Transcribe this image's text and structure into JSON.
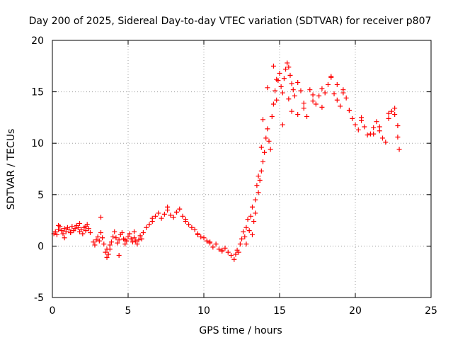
{
  "chart_data": {
    "type": "scatter",
    "title": "Day 200 of 2025, Sidereal Day-to-day VTEC variation (SDTVAR) for receiver p807",
    "xlabel": "GPS time / hours",
    "ylabel": "SDTVAR / TECUs",
    "xlim": [
      0,
      25
    ],
    "ylim": [
      -5,
      20
    ],
    "xticks": [
      0,
      5,
      10,
      15,
      20,
      25
    ],
    "yticks": [
      -5,
      0,
      5,
      10,
      15,
      20
    ],
    "xtick_labels": [
      "0",
      "5",
      "10",
      "15",
      "20",
      "25"
    ],
    "ytick_labels": [
      "-5",
      "0",
      "5",
      "10",
      "15",
      "20"
    ],
    "grid": true,
    "marker": "plus",
    "colors": {
      "series": "#ff0000",
      "grid": "#a0a0a0",
      "axis": "#000000"
    },
    "series": [
      {
        "name": "SDTVAR",
        "x": [
          0.1,
          0.2,
          0.3,
          0.4,
          0.5,
          0.6,
          0.7,
          0.8,
          0.9,
          1.0,
          1.1,
          1.2,
          1.3,
          1.4,
          1.5,
          1.6,
          1.7,
          1.8,
          1.9,
          2.0,
          2.1,
          2.2,
          2.3,
          2.4,
          2.5,
          2.7,
          2.8,
          2.9,
          3.0,
          3.1,
          3.2,
          3.3,
          3.4,
          3.5,
          3.6,
          3.7,
          3.8,
          3.9,
          4.0,
          4.1,
          4.2,
          4.3,
          4.4,
          4.5,
          4.6,
          4.7,
          4.8,
          4.9,
          5.0,
          5.1,
          5.2,
          5.3,
          5.4,
          5.5,
          5.6,
          5.7,
          5.8,
          5.9,
          6.0,
          6.2,
          6.4,
          6.6,
          6.8,
          7.0,
          7.2,
          7.4,
          7.6,
          7.8,
          8.0,
          8.2,
          8.4,
          8.6,
          8.8,
          9.0,
          9.2,
          9.4,
          9.6,
          9.8,
          10.0,
          10.2,
          10.4,
          10.6,
          10.8,
          11.0,
          11.2,
          11.4,
          11.6,
          11.8,
          12.0,
          12.1,
          12.2,
          12.3,
          12.4,
          12.5,
          12.6,
          12.7,
          12.8,
          12.9,
          13.0,
          13.1,
          13.2,
          13.3,
          13.4,
          13.5,
          13.6,
          13.7,
          13.8,
          13.9,
          14.0,
          14.1,
          14.2,
          14.3,
          14.4,
          14.5,
          14.6,
          14.7,
          14.8,
          14.9,
          15.0,
          15.1,
          15.2,
          15.3,
          15.4,
          15.5,
          15.6,
          15.7,
          15.8,
          15.9,
          16.0,
          16.2,
          16.4,
          16.6,
          16.8,
          17.0,
          17.2,
          17.4,
          17.6,
          17.8,
          18.0,
          18.2,
          18.4,
          18.6,
          18.8,
          19.0,
          19.2,
          19.4,
          19.6,
          19.8,
          20.0,
          20.2,
          20.4,
          20.6,
          20.8,
          21.0,
          21.2,
          21.4,
          21.6,
          21.8,
          22.0,
          22.2,
          22.4,
          22.6,
          22.8,
          22.9,
          0.4,
          0.8,
          1.2,
          1.8,
          2.2,
          3.2,
          3.6,
          3.8,
          4.4,
          4.8,
          5.4,
          6.6,
          7.6,
          8.2,
          8.8,
          9.6,
          10.4,
          11.2,
          12.8,
          13.2,
          13.4,
          13.6,
          13.8,
          13.9,
          14.2,
          14.6,
          14.8,
          15.2,
          15.6,
          15.8,
          16.2,
          16.6,
          17.2,
          17.8,
          18.4,
          18.8,
          19.2,
          19.6,
          20.4,
          21.2,
          21.6,
          22.2,
          22.6,
          22.8
        ],
        "y": [
          1.2,
          1.4,
          1.1,
          1.6,
          1.9,
          1.5,
          1.2,
          1.7,
          1.4,
          1.8,
          1.6,
          1.3,
          1.9,
          1.5,
          1.7,
          2.0,
          1.8,
          1.4,
          1.6,
          1.2,
          1.8,
          1.5,
          2.1,
          1.7,
          1.3,
          0.4,
          0.1,
          0.6,
          0.9,
          0.5,
          1.3,
          0.8,
          0.2,
          -0.6,
          -1.1,
          -0.8,
          -0.3,
          0.4,
          0.9,
          1.4,
          0.8,
          0.3,
          0.6,
          1.1,
          1.3,
          0.7,
          0.2,
          0.5,
          0.9,
          1.2,
          0.7,
          0.4,
          0.8,
          0.5,
          0.2,
          0.6,
          1.0,
          0.7,
          1.3,
          1.8,
          2.1,
          2.4,
          2.9,
          3.2,
          2.7,
          3.1,
          3.5,
          3.0,
          2.8,
          3.3,
          3.6,
          2.9,
          2.4,
          2.1,
          1.8,
          1.6,
          1.2,
          0.9,
          0.8,
          0.5,
          0.3,
          -0.1,
          0.2,
          -0.3,
          -0.5,
          -0.2,
          -0.6,
          -0.9,
          -1.3,
          -0.8,
          -0.4,
          -0.6,
          0.2,
          0.7,
          1.4,
          0.9,
          1.8,
          2.6,
          1.5,
          2.9,
          3.8,
          2.4,
          4.5,
          5.9,
          5.2,
          6.4,
          7.3,
          8.2,
          9.1,
          10.5,
          11.4,
          10.2,
          9.4,
          12.6,
          13.8,
          15.1,
          14.2,
          16.1,
          16.8,
          15.5,
          14.9,
          16.3,
          17.2,
          17.8,
          17.4,
          16.6,
          15.8,
          15.2,
          14.6,
          15.9,
          15.1,
          13.4,
          12.6,
          15.2,
          14.1,
          13.8,
          14.6,
          15.3,
          14.9,
          15.7,
          16.4,
          14.8,
          14.2,
          13.6,
          15.2,
          14.4,
          13.2,
          12.4,
          11.8,
          11.3,
          12.2,
          11.6,
          10.8,
          10.9,
          11.5,
          12.1,
          11.2,
          10.5,
          10.1,
          12.4,
          13.1,
          12.8,
          11.7,
          9.4,
          2.0,
          0.8,
          1.3,
          2.2,
          1.9,
          2.8,
          -0.3,
          0.1,
          -0.9,
          0.6,
          1.4,
          2.7,
          3.8,
          3.3,
          2.6,
          1.1,
          0.4,
          -0.4,
          0.2,
          1.1,
          3.2,
          6.8,
          9.6,
          12.3,
          15.4,
          17.5,
          16.2,
          11.8,
          14.3,
          13.1,
          12.8,
          13.9,
          14.7,
          13.5,
          16.5,
          15.7,
          14.9,
          13.2,
          12.5,
          10.9,
          11.6,
          12.9,
          13.4,
          10.6
        ]
      }
    ]
  }
}
